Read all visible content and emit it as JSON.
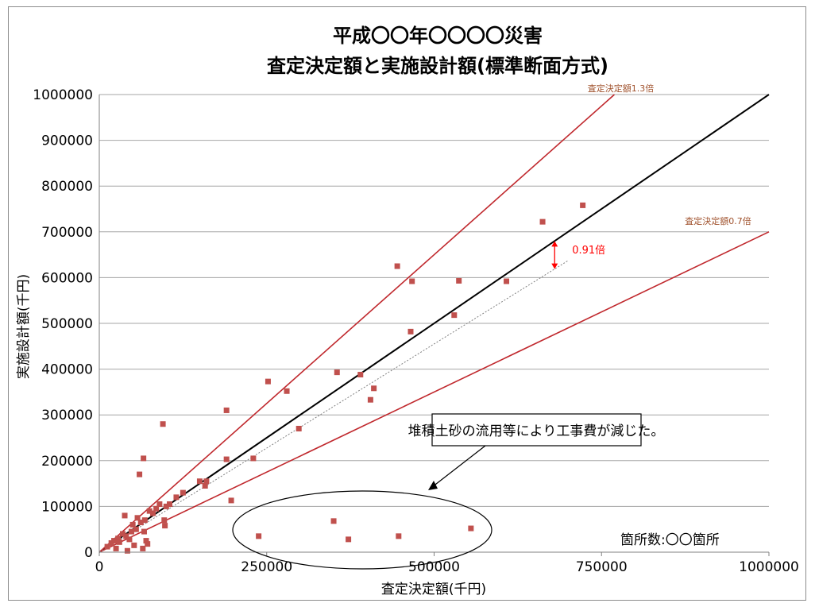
{
  "chart_data": {
    "type": "scatter",
    "title_lines": [
      "平成〇〇年〇〇〇〇災害",
      "査定決定額と実施設計額(標準断面方式)"
    ],
    "xlabel": "査定決定額(千円)",
    "ylabel": "実施設計額(千円)",
    "xlim": [
      0,
      1000000
    ],
    "ylim": [
      0,
      1000000
    ],
    "x_ticks": [
      0,
      250000,
      500000,
      750000,
      1000000
    ],
    "x_tick_labels": [
      "0",
      "250000",
      "500000",
      "750000",
      "1000000"
    ],
    "y_ticks": [
      0,
      100000,
      200000,
      300000,
      400000,
      500000,
      600000,
      700000,
      800000,
      900000,
      1000000
    ],
    "y_tick_labels": [
      "0",
      "100000",
      "200000",
      "300000",
      "400000",
      "500000",
      "600000",
      "700000",
      "800000",
      "900000",
      "1000000"
    ],
    "grid": "horizontal",
    "marker_color": "#c0504d",
    "points": [
      [
        12000,
        12000
      ],
      [
        18000,
        20000
      ],
      [
        22000,
        25000
      ],
      [
        25000,
        8000
      ],
      [
        28000,
        30000
      ],
      [
        30000,
        22000
      ],
      [
        35000,
        40000
      ],
      [
        38000,
        80000
      ],
      [
        40000,
        35000
      ],
      [
        42000,
        3000
      ],
      [
        45000,
        28000
      ],
      [
        48000,
        45000
      ],
      [
        50000,
        60000
      ],
      [
        52000,
        15000
      ],
      [
        55000,
        50000
      ],
      [
        57000,
        75000
      ],
      [
        60000,
        170000
      ],
      [
        62000,
        65000
      ],
      [
        65000,
        8000
      ],
      [
        66000,
        205000
      ],
      [
        67000,
        45000
      ],
      [
        68000,
        70000
      ],
      [
        70000,
        25000
      ],
      [
        72000,
        18000
      ],
      [
        75000,
        90000
      ],
      [
        80000,
        85000
      ],
      [
        85000,
        95000
      ],
      [
        90000,
        105000
      ],
      [
        95000,
        280000
      ],
      [
        97000,
        70000
      ],
      [
        98000,
        58000
      ],
      [
        100000,
        100000
      ],
      [
        105000,
        105000
      ],
      [
        115000,
        120000
      ],
      [
        125000,
        130000
      ],
      [
        150000,
        155000
      ],
      [
        158000,
        145000
      ],
      [
        160000,
        155000
      ],
      [
        190000,
        310000
      ],
      [
        190000,
        203000
      ],
      [
        197000,
        113000
      ],
      [
        230000,
        205000
      ],
      [
        238000,
        35000
      ],
      [
        252000,
        373000
      ],
      [
        280000,
        352000
      ],
      [
        298000,
        270000
      ],
      [
        350000,
        68000
      ],
      [
        355000,
        393000
      ],
      [
        372000,
        28000
      ],
      [
        390000,
        388000
      ],
      [
        405000,
        333000
      ],
      [
        410000,
        358000
      ],
      [
        445000,
        625000
      ],
      [
        447000,
        35000
      ],
      [
        465000,
        482000
      ],
      [
        467000,
        592000
      ],
      [
        530000,
        518000
      ],
      [
        537000,
        593000
      ],
      [
        555000,
        52000
      ],
      [
        608000,
        592000
      ],
      [
        662000,
        722000
      ],
      [
        722000,
        758000
      ]
    ],
    "reference_lines": [
      {
        "slope": 1.0,
        "color": "#000000",
        "label": ""
      },
      {
        "slope": 1.3,
        "color": "#c0282d",
        "label": "査定決定額1.3倍"
      },
      {
        "slope": 0.7,
        "color": "#c0282d",
        "label": "査定決定額0.7倍"
      }
    ],
    "trend_line": {
      "slope": 0.91,
      "x_end": 700000,
      "style": "dotted",
      "color": "#808080",
      "label": "0.91倍",
      "arrow_x": 680000
    },
    "annotation_text": "堆積土砂の流用等により工事費が減じた。",
    "count_label": "箇所数:〇〇箇所"
  }
}
